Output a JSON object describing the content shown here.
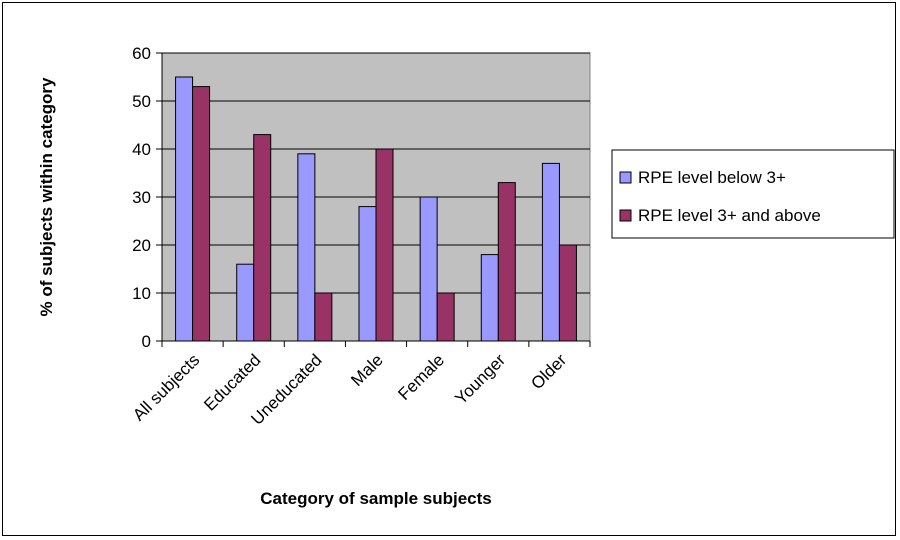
{
  "chart_data": {
    "type": "bar",
    "title": "",
    "xlabel": "Category of sample subjects",
    "ylabel": "% of subjects within category",
    "ylim": [
      0,
      60
    ],
    "yticks": [
      0,
      10,
      20,
      30,
      40,
      50,
      60
    ],
    "grid": true,
    "legend_position": "right",
    "categories": [
      "All subjects",
      "Educated",
      "Uneducated",
      "Male",
      "Female",
      "Younger",
      "Older"
    ],
    "series": [
      {
        "name": "RPE level below 3+",
        "color": "#9999ff",
        "values": [
          55,
          16,
          39,
          28,
          30,
          18,
          37
        ]
      },
      {
        "name": "RPE level 3+ and above",
        "color": "#993366",
        "values": [
          53,
          43,
          10,
          40,
          10,
          33,
          20
        ]
      }
    ],
    "plot_background": "#c0c0c0"
  }
}
